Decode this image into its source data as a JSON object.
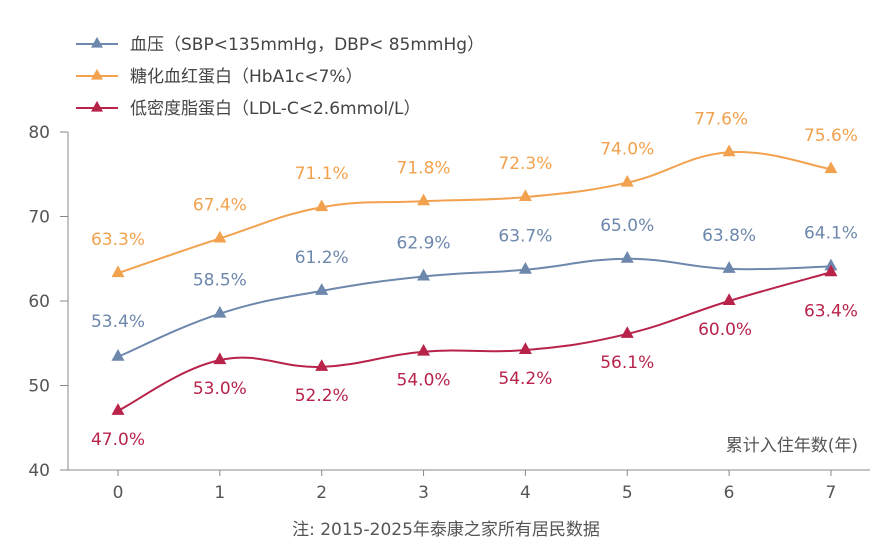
{
  "chart_data": {
    "type": "line",
    "x": [
      0,
      1,
      2,
      3,
      4,
      5,
      6,
      7
    ],
    "xlabel": "累计入住年数(年)",
    "ylim": [
      40,
      80
    ],
    "yticks": [
      40,
      50,
      60,
      70,
      80
    ],
    "grid": false,
    "legend_position": "top-left",
    "note": "注: 2015-2025年泰康之家所有居民数据",
    "series": [
      {
        "name": "血压（SBP<135mmHg，DBP< 85mmHg）",
        "color": "#6d87ad",
        "values": [
          53.4,
          58.5,
          61.2,
          62.9,
          63.7,
          65.0,
          63.8,
          64.1
        ],
        "labels": [
          "53.4%",
          "58.5%",
          "61.2%",
          "62.9%",
          "63.7%",
          "65.0%",
          "63.8%",
          "64.1%"
        ]
      },
      {
        "name": "糖化血红蛋白（HbA1c<7%）",
        "color": "#f2a24e",
        "values": [
          63.3,
          67.4,
          71.1,
          71.8,
          72.3,
          74.0,
          77.6,
          75.6
        ],
        "labels": [
          "63.3%",
          "67.4%",
          "71.1%",
          "71.8%",
          "72.3%",
          "74.0%",
          "77.6%",
          "75.6%"
        ]
      },
      {
        "name": "低密度脂蛋白（LDL-C<2.6mmol/L）",
        "color": "#b8234a",
        "values": [
          47.0,
          53.0,
          52.2,
          54.0,
          54.2,
          56.1,
          60.0,
          63.4
        ],
        "labels": [
          "47.0%",
          "53.0%",
          "52.2%",
          "54.0%",
          "54.2%",
          "56.1%",
          "60.0%",
          "63.4%"
        ]
      }
    ]
  }
}
